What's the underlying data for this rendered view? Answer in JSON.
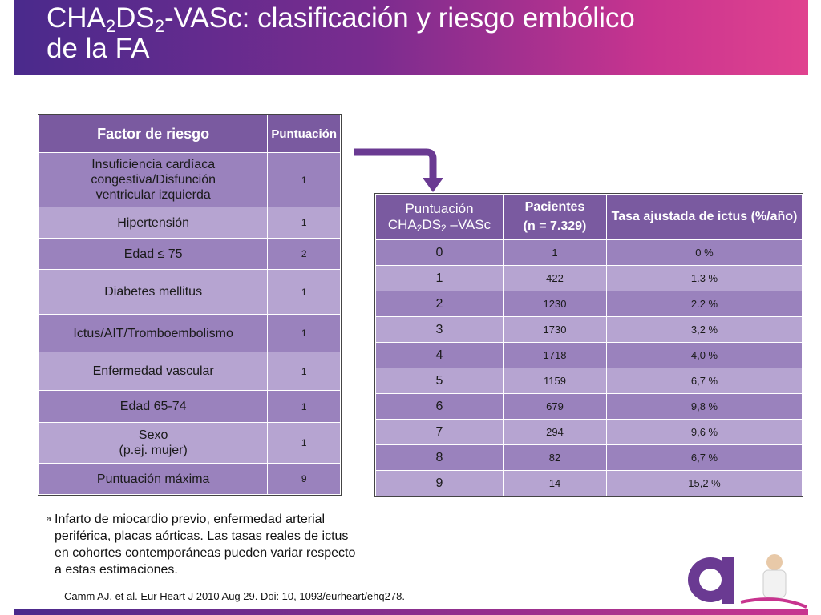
{
  "title": {
    "pre": "CHA",
    "sub1": "2",
    "mid": "DS",
    "sub2": "2",
    "post": "-VASc: clasificación y riesgo embólico",
    "line2": "de la FA"
  },
  "risk_table": {
    "headers": [
      "Factor de riesgo",
      "Puntuación"
    ],
    "rows": [
      {
        "factor": "Insuficiencia cardíaca congestiva/Disfunción ventricular izquierda",
        "score": "1"
      },
      {
        "factor": "Hipertensión",
        "score": "1"
      },
      {
        "factor": "Edad ≤ 75",
        "score": "2"
      },
      {
        "factor": "Diabetes mellitus",
        "score": "1"
      },
      {
        "factor": "Ictus/AIT/Tromboembolismo",
        "score": "1"
      },
      {
        "factor": "Enfermedad vascular",
        "score": "1"
      },
      {
        "factor": "Edad 65-74",
        "score": "1"
      },
      {
        "factor": "Sexo",
        "factor_line2": "(p.ej. mujer)",
        "score": "1"
      },
      {
        "factor": "Puntuación máxima",
        "score": "9"
      }
    ]
  },
  "stroke_table": {
    "h1_line1": "Puntuación",
    "h1_pre": "CHA",
    "h1_sub1": "2",
    "h1_mid": "DS",
    "h1_sub2": "2",
    "h1_post": " –VASc",
    "h2_line1": "Pacientes",
    "h2_line2": "(n = 7.329)",
    "h3": "Tasa ajustada de ictus (%/año)",
    "rows": [
      {
        "score": "0",
        "patients": "1",
        "rate": "0 %"
      },
      {
        "score": "1",
        "patients": "422",
        "rate": "1.3 %"
      },
      {
        "score": "2",
        "patients": "1230",
        "rate": "2.2 %"
      },
      {
        "score": "3",
        "patients": "1730",
        "rate": "3,2 %"
      },
      {
        "score": "4",
        "patients": "1718",
        "rate": "4,0 %"
      },
      {
        "score": "5",
        "patients": "1159",
        "rate": "6,7 %"
      },
      {
        "score": "6",
        "patients": "679",
        "rate": "9,8 %"
      },
      {
        "score": "7",
        "patients": "294",
        "rate": "9,6 %"
      },
      {
        "score": "8",
        "patients": "82",
        "rate": "6,7 %"
      },
      {
        "score": "9",
        "patients": "14",
        "rate": "15,2 %"
      }
    ]
  },
  "footnote": {
    "marker": "a",
    "text": "Infarto de miocardio previo, enfermedad arterial periférica, placas aórticas. Las tasas reales de ictus en cohortes contemporáneas pueden variar respecto a estas estimaciones."
  },
  "reference": "Camm AJ, et al. Eur Heart J 2010 Aug 29. Doi: 10, 1093/eurheart/ehq278.",
  "colors": {
    "header": "#7a5aa0",
    "row_dark": "#9a82bd",
    "row_light": "#b6a4d1",
    "arrow": "#6a3a92"
  }
}
